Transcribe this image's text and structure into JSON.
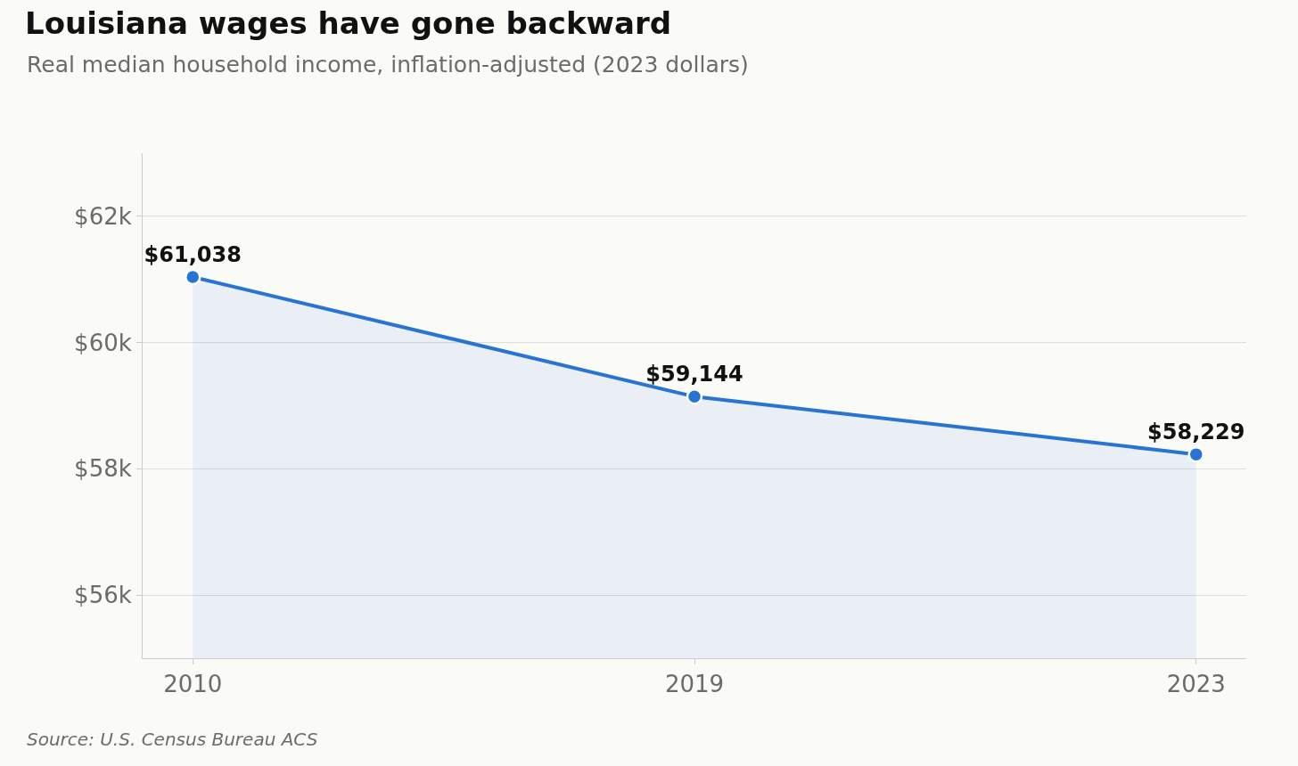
{
  "chart_data": {
    "type": "area",
    "title": "Louisiana wages have gone backward",
    "subtitle": "Real median household income, inflation-adjusted (2023 dollars)",
    "categories": [
      "2010",
      "2019",
      "2023"
    ],
    "series": [
      {
        "color": "#2874d4",
        "values": [
          61038,
          59144,
          58229
        ],
        "value_labels": [
          "$61,038",
          "$59,144",
          "$58,229"
        ]
      }
    ],
    "ylim": [
      55000,
      63000
    ],
    "yticks": [
      {
        "value": 56000,
        "label": "$56k"
      },
      {
        "value": 58000,
        "label": "$58k"
      },
      {
        "value": 60000,
        "label": "$60k"
      },
      {
        "value": 62000,
        "label": "$62k"
      }
    ],
    "grid": "y",
    "marker": "circle",
    "line_style": "solid",
    "annotations": [
      "Source: U.S. Census Bureau ACS"
    ]
  }
}
